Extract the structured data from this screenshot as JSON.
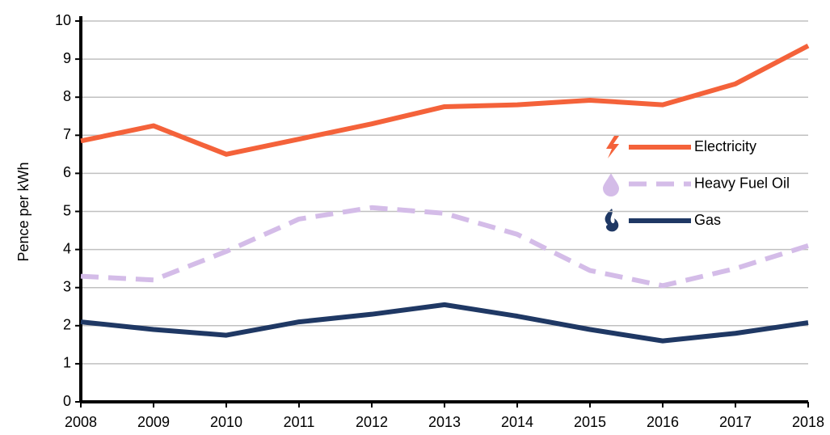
{
  "chart_data": {
    "type": "line",
    "ylabel": "Pence per kWh",
    "x": [
      2008,
      2009,
      2010,
      2011,
      2012,
      2013,
      2014,
      2015,
      2016,
      2017,
      2018
    ],
    "xlim": [
      2008,
      2018
    ],
    "xticks": [
      2008,
      2009,
      2010,
      2011,
      2012,
      2013,
      2014,
      2015,
      2016,
      2017,
      2018
    ],
    "ylim": [
      0,
      10
    ],
    "yticks": [
      0,
      1,
      2,
      3,
      4,
      5,
      6,
      7,
      8,
      9,
      10
    ],
    "grid": true,
    "legend": "right",
    "series": [
      {
        "name": "Electricity",
        "color": "#f4623a",
        "dashed": false,
        "values": [
          6.85,
          7.25,
          6.5,
          6.9,
          7.3,
          7.75,
          7.8,
          7.92,
          7.8,
          8.35,
          9.35
        ]
      },
      {
        "name": "Heavy Fuel Oil",
        "color": "#d4bce8",
        "dashed": true,
        "values": [
          3.3,
          3.2,
          3.95,
          4.8,
          5.1,
          4.95,
          4.4,
          3.45,
          3.05,
          3.5,
          4.1
        ]
      },
      {
        "name": "Gas",
        "color": "#1f3864",
        "dashed": false,
        "values": [
          2.1,
          1.9,
          1.75,
          2.1,
          2.3,
          2.55,
          2.25,
          1.9,
          1.6,
          1.8,
          2.08
        ]
      }
    ]
  }
}
